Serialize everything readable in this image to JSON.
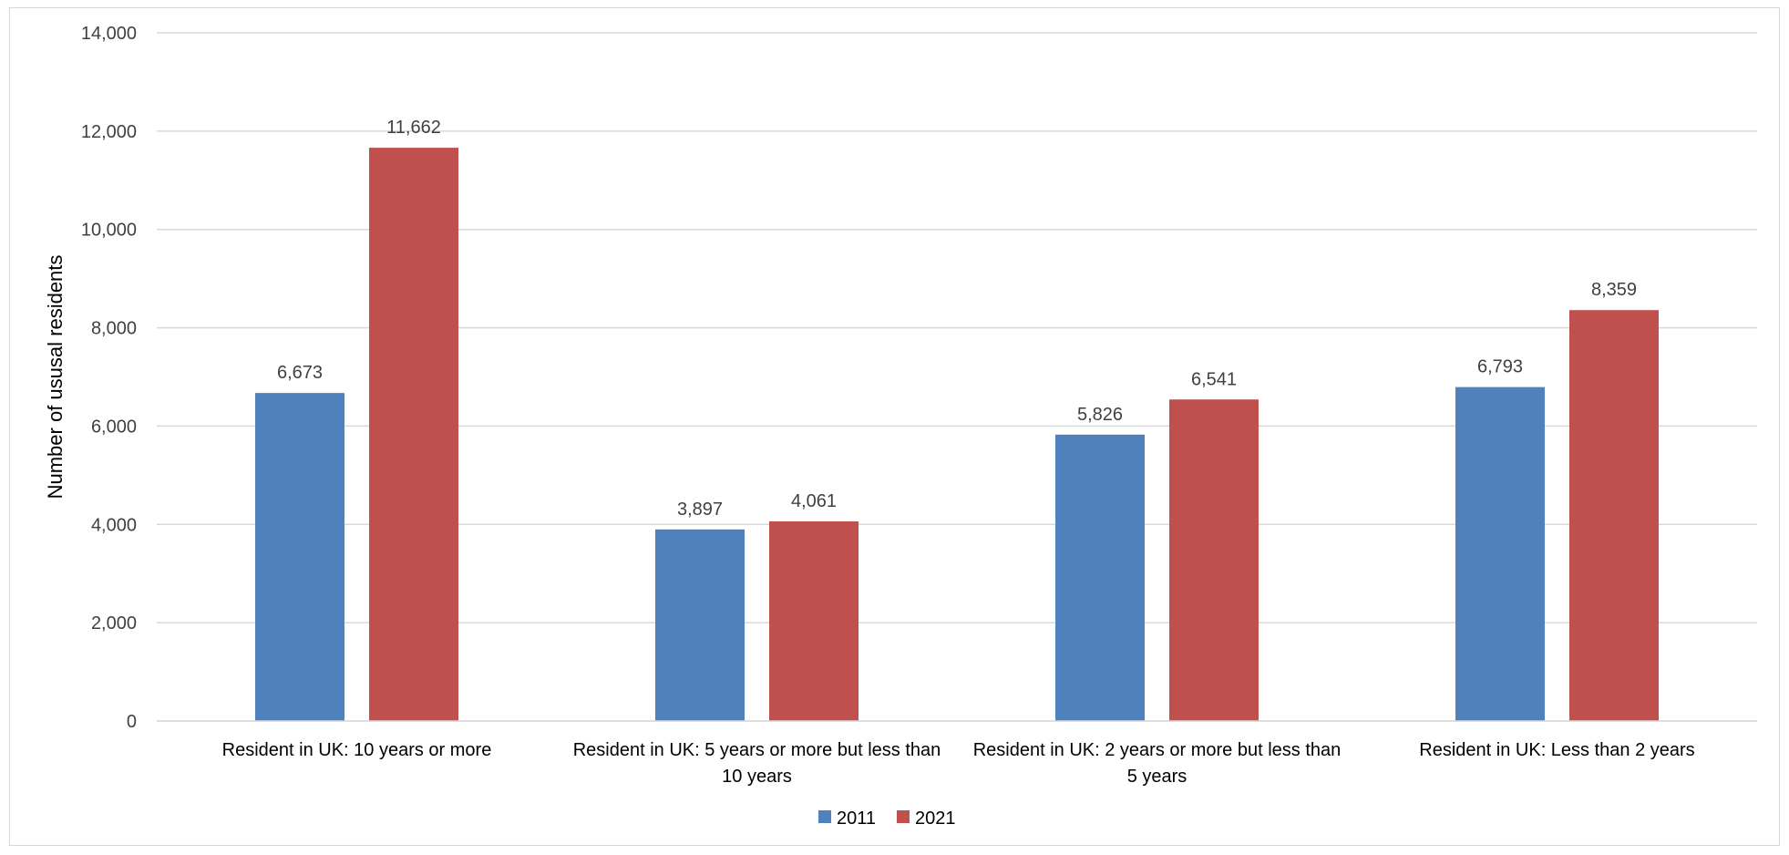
{
  "chart_data": {
    "type": "bar",
    "categories": [
      [
        "Resident in UK: 10 years or more"
      ],
      [
        "Resident in UK: 5 years or more but less than",
        "10 years"
      ],
      [
        "Resident in UK: 2 years or more but less than",
        "5 years"
      ],
      [
        "Resident in UK: Less than 2 years"
      ]
    ],
    "series": [
      {
        "name": "2011",
        "color": "#4f81bd",
        "values": [
          6673,
          3897,
          5826,
          6793
        ]
      },
      {
        "name": "2021",
        "color": "#c0504d",
        "values": [
          11662,
          4061,
          6541,
          8359
        ]
      }
    ],
    "ylabel": "Number of ususal residents",
    "ylim": [
      0,
      14000
    ],
    "yticks": [
      0,
      2000,
      4000,
      6000,
      8000,
      10000,
      12000,
      14000
    ],
    "grid": true,
    "legend": "bottom"
  }
}
